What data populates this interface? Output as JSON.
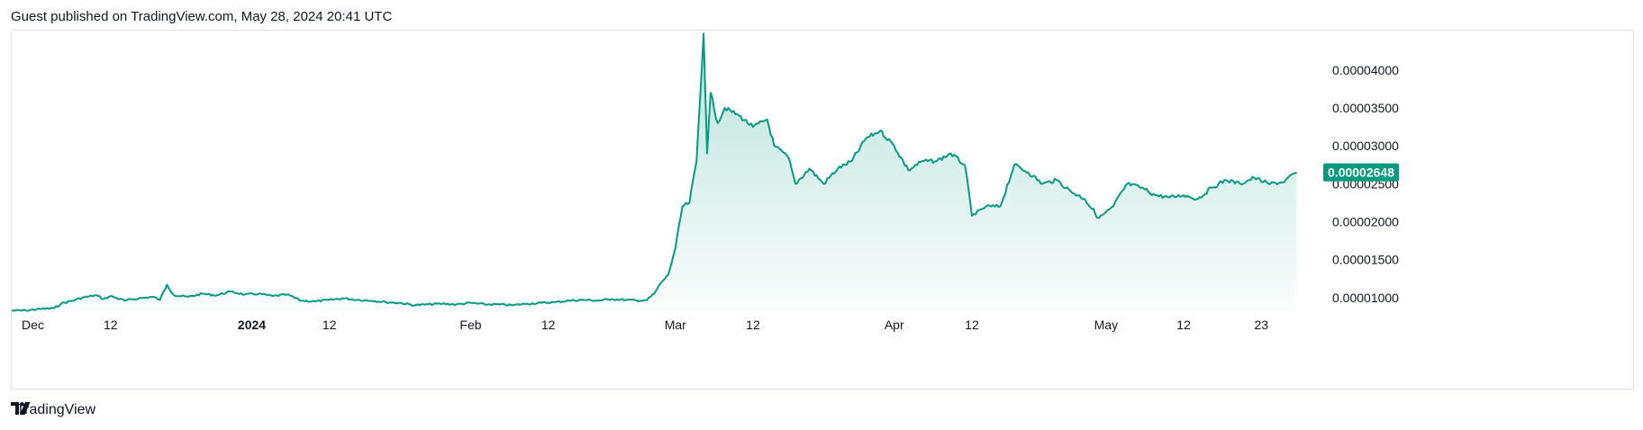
{
  "header": {
    "published": "Guest published on TradingView.com, May 28, 2024 20:41 UTC"
  },
  "footer": {
    "brand": "TradingView"
  },
  "colors": {
    "line": "#089981",
    "fill_top": "#089981",
    "price_tag": "#089981",
    "grid": "#e0e3eb"
  },
  "chart_data": {
    "type": "area",
    "title": "",
    "xlabel": "",
    "ylabel": "",
    "x_ticks": [
      {
        "label": "Dec",
        "date": "2023-12-01",
        "bold": false
      },
      {
        "label": "12",
        "date": "2023-12-12",
        "bold": false
      },
      {
        "label": "2024",
        "date": "2024-01-01",
        "bold": true
      },
      {
        "label": "12",
        "date": "2024-01-12",
        "bold": false
      },
      {
        "label": "Feb",
        "date": "2024-02-01",
        "bold": false
      },
      {
        "label": "12",
        "date": "2024-02-12",
        "bold": false
      },
      {
        "label": "Mar",
        "date": "2024-03-01",
        "bold": false
      },
      {
        "label": "12",
        "date": "2024-03-12",
        "bold": false
      },
      {
        "label": "Apr",
        "date": "2024-04-01",
        "bold": false
      },
      {
        "label": "12",
        "date": "2024-04-12",
        "bold": false
      },
      {
        "label": "May",
        "date": "2024-05-01",
        "bold": false
      },
      {
        "label": "12",
        "date": "2024-05-12",
        "bold": false
      },
      {
        "label": "23",
        "date": "2024-05-23",
        "bold": false
      }
    ],
    "y_ticks": [
      "0.00001000",
      "0.00001500",
      "0.00002000",
      "0.00002500",
      "0.00003000",
      "0.00003500",
      "0.00004000"
    ],
    "y_tick_values": [
      1e-05,
      1.5e-05,
      2e-05,
      2.5e-05,
      3e-05,
      3.5e-05,
      4e-05
    ],
    "ylim": [
      8.2e-06,
      4.52e-05
    ],
    "xlim": [
      "2023-11-28",
      "2024-05-31"
    ],
    "last_price_label": "0.00002648",
    "last_price": 2.648e-05,
    "series": [
      {
        "values": [
          [
            "2023-11-28",
            8.28e-06
          ],
          [
            "2023-11-30",
            8.3e-06
          ],
          [
            "2023-12-02",
            8.5e-06
          ],
          [
            "2023-12-04",
            8.6e-06
          ],
          [
            "2023-12-05",
            9.2e-06
          ],
          [
            "2023-12-07",
            9.7e-06
          ],
          [
            "2023-12-08",
            1e-05
          ],
          [
            "2023-12-10",
            1.03e-05
          ],
          [
            "2023-12-11",
            9.8e-06
          ],
          [
            "2023-12-12",
            1.02e-05
          ],
          [
            "2023-12-14",
            9.6e-06
          ],
          [
            "2023-12-16",
            9.9e-06
          ],
          [
            "2023-12-18",
            1.01e-05
          ],
          [
            "2023-12-19",
            9.7e-06
          ],
          [
            "2023-12-20",
            1.17e-05
          ],
          [
            "2023-12-21",
            1.03e-05
          ],
          [
            "2023-12-23",
            1.01e-05
          ],
          [
            "2023-12-25",
            1.05e-05
          ],
          [
            "2023-12-27",
            1.03e-05
          ],
          [
            "2023-12-29",
            1.08e-05
          ],
          [
            "2023-12-31",
            1.04e-05
          ],
          [
            "2024-01-02",
            1.05e-05
          ],
          [
            "2024-01-04",
            1.02e-05
          ],
          [
            "2024-01-06",
            1.04e-05
          ],
          [
            "2024-01-08",
            9.6e-06
          ],
          [
            "2024-01-10",
            9.5e-06
          ],
          [
            "2024-01-12",
            9.7e-06
          ],
          [
            "2024-01-14",
            9.9e-06
          ],
          [
            "2024-01-16",
            9.7e-06
          ],
          [
            "2024-01-18",
            9.6e-06
          ],
          [
            "2024-01-20",
            9.4e-06
          ],
          [
            "2024-01-22",
            9.3e-06
          ],
          [
            "2024-01-24",
            9e-06
          ],
          [
            "2024-01-26",
            9.1e-06
          ],
          [
            "2024-01-28",
            9.2e-06
          ],
          [
            "2024-01-30",
            9.1e-06
          ],
          [
            "2024-02-01",
            9.3e-06
          ],
          [
            "2024-02-03",
            9.1e-06
          ],
          [
            "2024-02-05",
            9.1e-06
          ],
          [
            "2024-02-07",
            9e-06
          ],
          [
            "2024-02-09",
            9.2e-06
          ],
          [
            "2024-02-11",
            9.3e-06
          ],
          [
            "2024-02-13",
            9.4e-06
          ],
          [
            "2024-02-15",
            9.6e-06
          ],
          [
            "2024-02-17",
            9.7e-06
          ],
          [
            "2024-02-19",
            9.6e-06
          ],
          [
            "2024-02-21",
            9.8e-06
          ],
          [
            "2024-02-23",
            9.7e-06
          ],
          [
            "2024-02-25",
            9.6e-06
          ],
          [
            "2024-02-26",
            9.7e-06
          ],
          [
            "2024-02-27",
            1.05e-05
          ],
          [
            "2024-02-28",
            1.2e-05
          ],
          [
            "2024-02-29",
            1.3e-05
          ],
          [
            "2024-03-01",
            1.65e-05
          ],
          [
            "2024-03-02",
            2.2e-05
          ],
          [
            "2024-03-03",
            2.25e-05
          ],
          [
            "2024-03-04",
            2.8e-05
          ],
          [
            "2024-03-05",
            4.48e-05
          ],
          [
            "2024-03-05.5",
            2.9e-05
          ],
          [
            "2024-03-06",
            3.7e-05
          ],
          [
            "2024-03-07",
            3.3e-05
          ],
          [
            "2024-03-08",
            3.5e-05
          ],
          [
            "2024-03-10",
            3.4e-05
          ],
          [
            "2024-03-12",
            3.25e-05
          ],
          [
            "2024-03-14",
            3.35e-05
          ],
          [
            "2024-03-15",
            3e-05
          ],
          [
            "2024-03-17",
            2.85e-05
          ],
          [
            "2024-03-18",
            2.5e-05
          ],
          [
            "2024-03-20",
            2.7e-05
          ],
          [
            "2024-03-22",
            2.5e-05
          ],
          [
            "2024-03-24",
            2.7e-05
          ],
          [
            "2024-03-26",
            2.8e-05
          ],
          [
            "2024-03-28",
            3.1e-05
          ],
          [
            "2024-03-30",
            3.2e-05
          ],
          [
            "2024-04-01",
            3e-05
          ],
          [
            "2024-04-03",
            2.68e-05
          ],
          [
            "2024-04-05",
            2.8e-05
          ],
          [
            "2024-04-07",
            2.8e-05
          ],
          [
            "2024-04-09",
            2.9e-05
          ],
          [
            "2024-04-11",
            2.75e-05
          ],
          [
            "2024-04-12",
            2.08e-05
          ],
          [
            "2024-04-14",
            2.2e-05
          ],
          [
            "2024-04-16",
            2.2e-05
          ],
          [
            "2024-04-18",
            2.75e-05
          ],
          [
            "2024-04-20",
            2.65e-05
          ],
          [
            "2024-04-22",
            2.5e-05
          ],
          [
            "2024-04-24",
            2.55e-05
          ],
          [
            "2024-04-26",
            2.4e-05
          ],
          [
            "2024-04-28",
            2.3e-05
          ],
          [
            "2024-04-30",
            2.05e-05
          ],
          [
            "2024-05-02",
            2.2e-05
          ],
          [
            "2024-05-04",
            2.5e-05
          ],
          [
            "2024-05-06",
            2.45e-05
          ],
          [
            "2024-05-08",
            2.35e-05
          ],
          [
            "2024-05-10",
            2.32e-05
          ],
          [
            "2024-05-12",
            2.35e-05
          ],
          [
            "2024-05-14",
            2.3e-05
          ],
          [
            "2024-05-16",
            2.45e-05
          ],
          [
            "2024-05-18",
            2.55e-05
          ],
          [
            "2024-05-20",
            2.5e-05
          ],
          [
            "2024-05-22",
            2.58e-05
          ],
          [
            "2024-05-24",
            2.5e-05
          ],
          [
            "2024-05-26",
            2.52e-05
          ],
          [
            "2024-05-28",
            2.65e-05
          ]
        ]
      }
    ],
    "grid": false,
    "legend": "none"
  }
}
